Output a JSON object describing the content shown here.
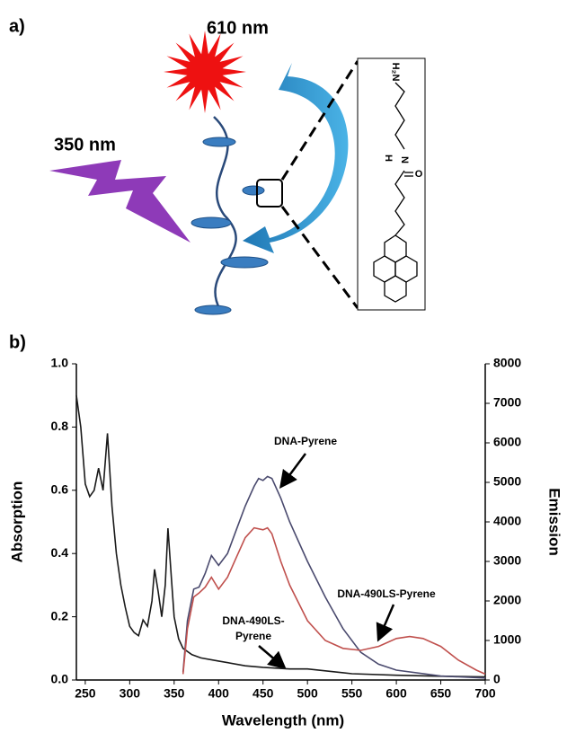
{
  "panel_a": {
    "label": "a)",
    "excitation": "350 nm",
    "emission": "610 nm",
    "molecule_labels": [
      "H₂N",
      "H",
      "N",
      "O"
    ]
  },
  "chart_data": {
    "type": "line",
    "label": "b)",
    "xlabel": "Wavelength (nm)",
    "ylabel": "Absorption",
    "y2label": "Emission",
    "xlim": [
      240,
      700
    ],
    "xticks": [
      250,
      300,
      350,
      400,
      450,
      500,
      550,
      600,
      650,
      700
    ],
    "ylim": [
      0,
      1
    ],
    "yticks": [
      {
        "value": 0,
        "label": "0.0"
      },
      0.2,
      0.4,
      0.6,
      0.8,
      {
        "value": 1,
        "label": "1.0"
      }
    ],
    "y2lim": [
      0,
      8000
    ],
    "y2ticks": [
      0,
      1000,
      2000,
      3000,
      4000,
      5000,
      6000,
      7000,
      8000
    ],
    "series": [
      {
        "color": "#1a1a1a",
        "axis": "y",
        "x": [
          240,
          245,
          250,
          255,
          260,
          265,
          270,
          275,
          280,
          285,
          290,
          295,
          300,
          305,
          310,
          315,
          320,
          325,
          328,
          332,
          336,
          340,
          343,
          347,
          350,
          355,
          360,
          370,
          380,
          400,
          430,
          450,
          480,
          500,
          550,
          600,
          650,
          700
        ],
        "values": [
          0.9,
          0.8,
          0.62,
          0.58,
          0.6,
          0.67,
          0.6,
          0.78,
          0.55,
          0.4,
          0.3,
          0.23,
          0.17,
          0.15,
          0.14,
          0.19,
          0.17,
          0.25,
          0.35,
          0.28,
          0.2,
          0.3,
          0.48,
          0.32,
          0.2,
          0.13,
          0.1,
          0.08,
          0.07,
          0.06,
          0.045,
          0.04,
          0.035,
          0.035,
          0.02,
          0.015,
          0.012,
          0.01
        ]
      },
      {
        "color": "#4a4a6e",
        "axis": "y2",
        "x": [
          360,
          365,
          372,
          378,
          385,
          392,
          400,
          410,
          420,
          430,
          440,
          445,
          450,
          455,
          460,
          470,
          480,
          500,
          520,
          540,
          560,
          580,
          600,
          650,
          700
        ],
        "values": [
          200,
          1500,
          2300,
          2350,
          2700,
          3150,
          2900,
          3200,
          3800,
          4400,
          4900,
          5100,
          5050,
          5150,
          5100,
          4600,
          4000,
          3000,
          2100,
          1300,
          700,
          400,
          250,
          100,
          50
        ]
      },
      {
        "color": "#c0504d",
        "axis": "y2",
        "x": [
          360,
          365,
          372,
          378,
          385,
          392,
          400,
          410,
          420,
          430,
          440,
          450,
          455,
          460,
          470,
          480,
          500,
          520,
          540,
          560,
          580,
          600,
          615,
          630,
          650,
          670,
          690,
          700
        ],
        "values": [
          150,
          1300,
          2100,
          2200,
          2350,
          2600,
          2300,
          2600,
          3100,
          3600,
          3850,
          3800,
          3850,
          3700,
          3000,
          2400,
          1500,
          1000,
          800,
          750,
          850,
          1050,
          1100,
          1050,
          850,
          500,
          250,
          150
        ]
      }
    ],
    "annotations": [
      "DNA-Pyrene",
      "DNA-490LS-Pyrene",
      "DNA-490LS-",
      "Pyrene"
    ]
  }
}
